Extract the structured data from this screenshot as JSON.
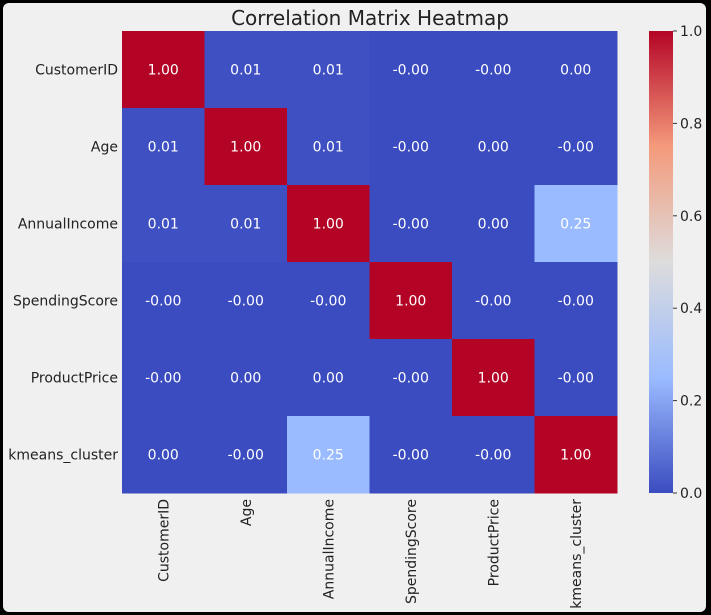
{
  "chart_data": {
    "type": "heatmap",
    "title": "Correlation Matrix Heatmap",
    "rows": [
      "CustomerID",
      "Age",
      "AnnualIncome",
      "SpendingScore",
      "ProductPrice",
      "kmeans_cluster"
    ],
    "columns": [
      "CustomerID",
      "Age",
      "AnnualIncome",
      "SpendingScore",
      "ProductPrice",
      "kmeans_cluster"
    ],
    "values": [
      [
        1.0,
        0.01,
        0.01,
        -0.0,
        -0.0,
        0.0
      ],
      [
        0.01,
        1.0,
        0.01,
        -0.0,
        0.0,
        -0.0
      ],
      [
        0.01,
        0.01,
        1.0,
        -0.0,
        0.0,
        0.25
      ],
      [
        -0.0,
        -0.0,
        -0.0,
        1.0,
        -0.0,
        -0.0
      ],
      [
        -0.0,
        0.0,
        0.0,
        -0.0,
        1.0,
        -0.0
      ],
      [
        0.0,
        -0.0,
        0.25,
        -0.0,
        -0.0,
        1.0
      ]
    ],
    "cell_labels": [
      [
        "1.00",
        "0.01",
        "0.01",
        "-0.00",
        "-0.00",
        "0.00"
      ],
      [
        "0.01",
        "1.00",
        "0.01",
        "-0.00",
        "0.00",
        "-0.00"
      ],
      [
        "0.01",
        "0.01",
        "1.00",
        "-0.00",
        "0.00",
        "0.25"
      ],
      [
        "-0.00",
        "-0.00",
        "-0.00",
        "1.00",
        "-0.00",
        "-0.00"
      ],
      [
        "-0.00",
        "0.00",
        "0.00",
        "-0.00",
        "1.00",
        "-0.00"
      ],
      [
        "0.00",
        "-0.00",
        "0.25",
        "-0.00",
        "-0.00",
        "1.00"
      ]
    ],
    "colormap": "coolwarm",
    "colorbar": {
      "range": [
        0.0,
        1.0
      ],
      "ticks": [
        0.0,
        0.2,
        0.4,
        0.6,
        0.8,
        1.0
      ],
      "tick_labels": [
        "0.0",
        "0.2",
        "0.4",
        "0.6",
        "0.8",
        "1.0"
      ],
      "colors": {
        "0.0": "#3b4cc0",
        "0.25": "#9abbff",
        "0.5": "#dddcdc",
        "0.75": "#f49a7b",
        "1.0": "#b40426"
      }
    },
    "grid": false
  }
}
